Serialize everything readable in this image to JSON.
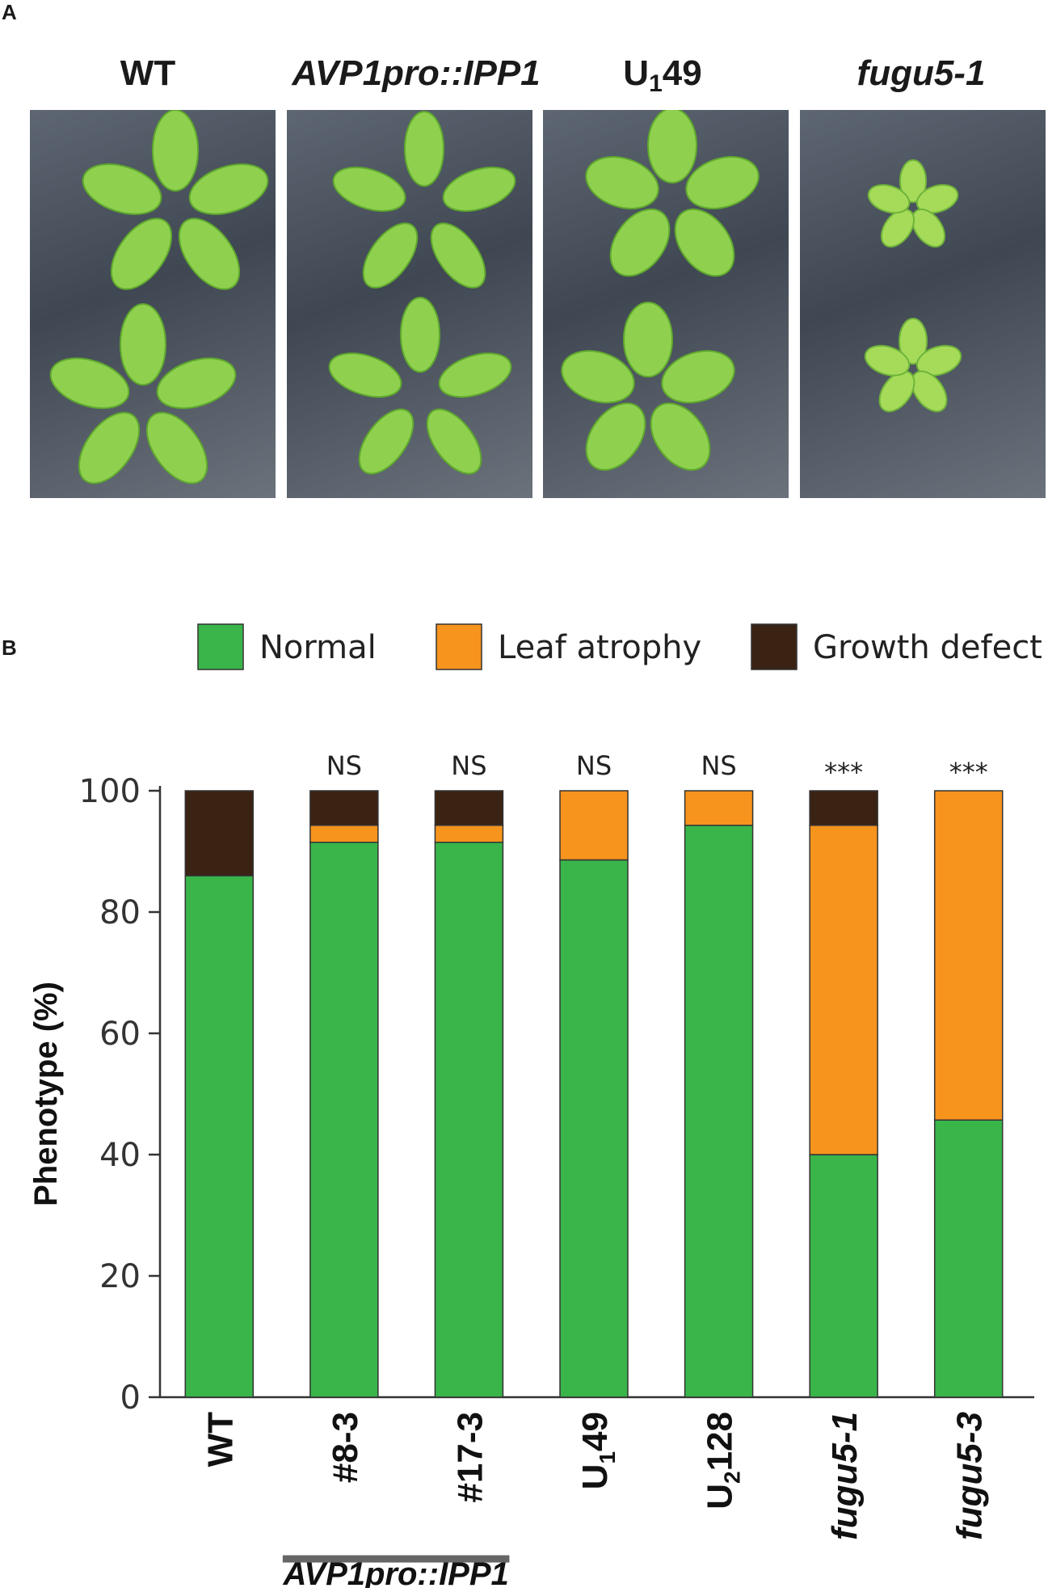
{
  "panels": {
    "a_letter": "A",
    "b_letter": "B"
  },
  "photos": [
    {
      "title": "WT",
      "italic": false
    },
    {
      "title": "AVP1pro::IPP1",
      "italic": true
    },
    {
      "title_main": "U",
      "title_sub": "1",
      "title_rest": "49",
      "italic": false
    },
    {
      "title": "fugu5-1",
      "italic": true
    }
  ],
  "colors": {
    "normal": "#39b54a",
    "leaf_atrophy": "#f7941d",
    "growth_defect": "#3b2314",
    "axis": "#333333"
  },
  "chart_data": {
    "type": "bar",
    "stacked": true,
    "ylabel": "Phenotype  (%)",
    "ylim": [
      0,
      100
    ],
    "yticks": [
      0,
      20,
      40,
      60,
      80,
      100
    ],
    "legend_position": "top",
    "legend": [
      "Normal",
      "Leaf atrophy",
      "Growth defect"
    ],
    "categories": [
      {
        "main": "WT",
        "sub": "",
        "rest": "",
        "italic": false
      },
      {
        "main": "#8-3",
        "sub": "",
        "rest": "",
        "italic": false
      },
      {
        "main": "#17-3",
        "sub": "",
        "rest": "",
        "italic": false
      },
      {
        "main": "U",
        "sub": "1",
        "rest": "49",
        "italic": false
      },
      {
        "main": "U",
        "sub": "2",
        "rest": "128",
        "italic": false
      },
      {
        "main": "fugu5-1",
        "sub": "",
        "rest": "",
        "italic": true
      },
      {
        "main": "fugu5-3",
        "sub": "",
        "rest": "",
        "italic": true
      }
    ],
    "series": [
      {
        "name": "Normal",
        "values": [
          86,
          91.5,
          91.5,
          88.6,
          94.3,
          40,
          45.7
        ]
      },
      {
        "name": "Leaf atrophy",
        "values": [
          0,
          2.8,
          2.8,
          11.4,
          5.7,
          54.3,
          54.3
        ]
      },
      {
        "name": "Growth defect",
        "values": [
          14,
          5.7,
          5.7,
          0,
          0,
          5.7,
          0
        ]
      }
    ],
    "significance": [
      "",
      "NS",
      "NS",
      "NS",
      "NS",
      "***",
      "***"
    ],
    "group_label": "AVP1pro::IPP1",
    "group_span": [
      1,
      2
    ]
  }
}
